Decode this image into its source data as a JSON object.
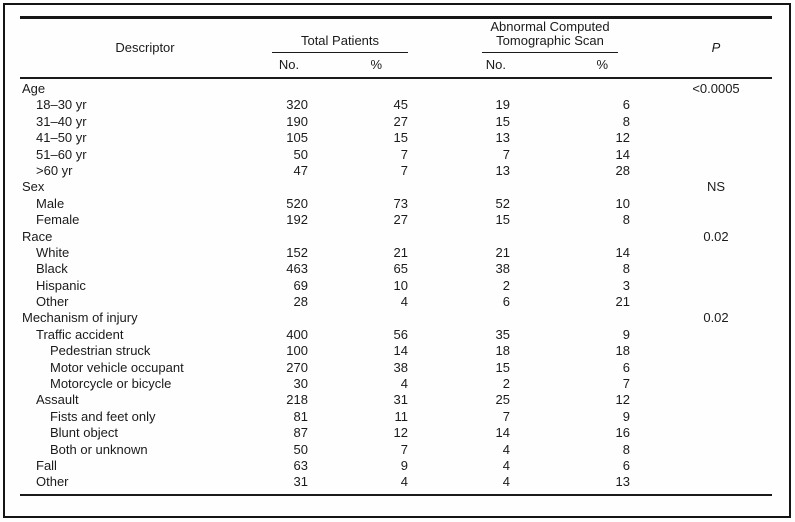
{
  "colors": {
    "text": "#1b1b1b",
    "rule": "#1a1a1a",
    "background": "#fefefe"
  },
  "table": {
    "header": {
      "descriptor": "Descriptor",
      "group_total": "Total Patients",
      "group_abnormal": "Abnormal Computed Tomographic Scan",
      "p": "P",
      "sub_no_total": "No.",
      "sub_pct_total": "%",
      "sub_no_abnormal": "No.",
      "sub_pct_abnormal": "%"
    },
    "rows": [
      {
        "label": "Age",
        "level": 0,
        "total_no": "",
        "total_pct": "",
        "abn_no": "",
        "abn_pct": "",
        "p": "<0.0005"
      },
      {
        "label": "18–30 yr",
        "level": 1,
        "total_no": "320",
        "total_pct": "45",
        "abn_no": "19",
        "abn_pct": "6",
        "p": ""
      },
      {
        "label": "31–40 yr",
        "level": 1,
        "total_no": "190",
        "total_pct": "27",
        "abn_no": "15",
        "abn_pct": "8",
        "p": ""
      },
      {
        "label": "41–50 yr",
        "level": 1,
        "total_no": "105",
        "total_pct": "15",
        "abn_no": "13",
        "abn_pct": "12",
        "p": ""
      },
      {
        "label": "51–60 yr",
        "level": 1,
        "total_no": "50",
        "total_pct": "7",
        "abn_no": "7",
        "abn_pct": "14",
        "p": ""
      },
      {
        "label": ">60 yr",
        "level": 1,
        "total_no": "47",
        "total_pct": "7",
        "abn_no": "13",
        "abn_pct": "28",
        "p": ""
      },
      {
        "label": "Sex",
        "level": 0,
        "total_no": "",
        "total_pct": "",
        "abn_no": "",
        "abn_pct": "",
        "p": "NS"
      },
      {
        "label": "Male",
        "level": 1,
        "total_no": "520",
        "total_pct": "73",
        "abn_no": "52",
        "abn_pct": "10",
        "p": ""
      },
      {
        "label": "Female",
        "level": 1,
        "total_no": "192",
        "total_pct": "27",
        "abn_no": "15",
        "abn_pct": "8",
        "p": ""
      },
      {
        "label": "Race",
        "level": 0,
        "total_no": "",
        "total_pct": "",
        "abn_no": "",
        "abn_pct": "",
        "p": "0.02"
      },
      {
        "label": "White",
        "level": 1,
        "total_no": "152",
        "total_pct": "21",
        "abn_no": "21",
        "abn_pct": "14",
        "p": ""
      },
      {
        "label": "Black",
        "level": 1,
        "total_no": "463",
        "total_pct": "65",
        "abn_no": "38",
        "abn_pct": "8",
        "p": ""
      },
      {
        "label": "Hispanic",
        "level": 1,
        "total_no": "69",
        "total_pct": "10",
        "abn_no": "2",
        "abn_pct": "3",
        "p": ""
      },
      {
        "label": "Other",
        "level": 1,
        "total_no": "28",
        "total_pct": "4",
        "abn_no": "6",
        "abn_pct": "21",
        "p": ""
      },
      {
        "label": "Mechanism of injury",
        "level": 0,
        "total_no": "",
        "total_pct": "",
        "abn_no": "",
        "abn_pct": "",
        "p": "0.02"
      },
      {
        "label": "Traffic accident",
        "level": 1,
        "total_no": "400",
        "total_pct": "56",
        "abn_no": "35",
        "abn_pct": "9",
        "p": ""
      },
      {
        "label": "Pedestrian struck",
        "level": 2,
        "total_no": "100",
        "total_pct": "14",
        "abn_no": "18",
        "abn_pct": "18",
        "p": ""
      },
      {
        "label": "Motor vehicle occupant",
        "level": 2,
        "total_no": "270",
        "total_pct": "38",
        "abn_no": "15",
        "abn_pct": "6",
        "p": ""
      },
      {
        "label": "Motorcycle or bicycle",
        "level": 2,
        "total_no": "30",
        "total_pct": "4",
        "abn_no": "2",
        "abn_pct": "7",
        "p": ""
      },
      {
        "label": "Assault",
        "level": 1,
        "total_no": "218",
        "total_pct": "31",
        "abn_no": "25",
        "abn_pct": "12",
        "p": ""
      },
      {
        "label": "Fists and feet only",
        "level": 2,
        "total_no": "81",
        "total_pct": "11",
        "abn_no": "7",
        "abn_pct": "9",
        "p": ""
      },
      {
        "label": "Blunt object",
        "level": 2,
        "total_no": "87",
        "total_pct": "12",
        "abn_no": "14",
        "abn_pct": "16",
        "p": ""
      },
      {
        "label": "Both or unknown",
        "level": 2,
        "total_no": "50",
        "total_pct": "7",
        "abn_no": "4",
        "abn_pct": "8",
        "p": ""
      },
      {
        "label": "Fall",
        "level": 1,
        "total_no": "63",
        "total_pct": "9",
        "abn_no": "4",
        "abn_pct": "6",
        "p": ""
      },
      {
        "label": "Other",
        "level": 1,
        "total_no": "31",
        "total_pct": "4",
        "abn_no": "4",
        "abn_pct": "13",
        "p": ""
      }
    ]
  }
}
